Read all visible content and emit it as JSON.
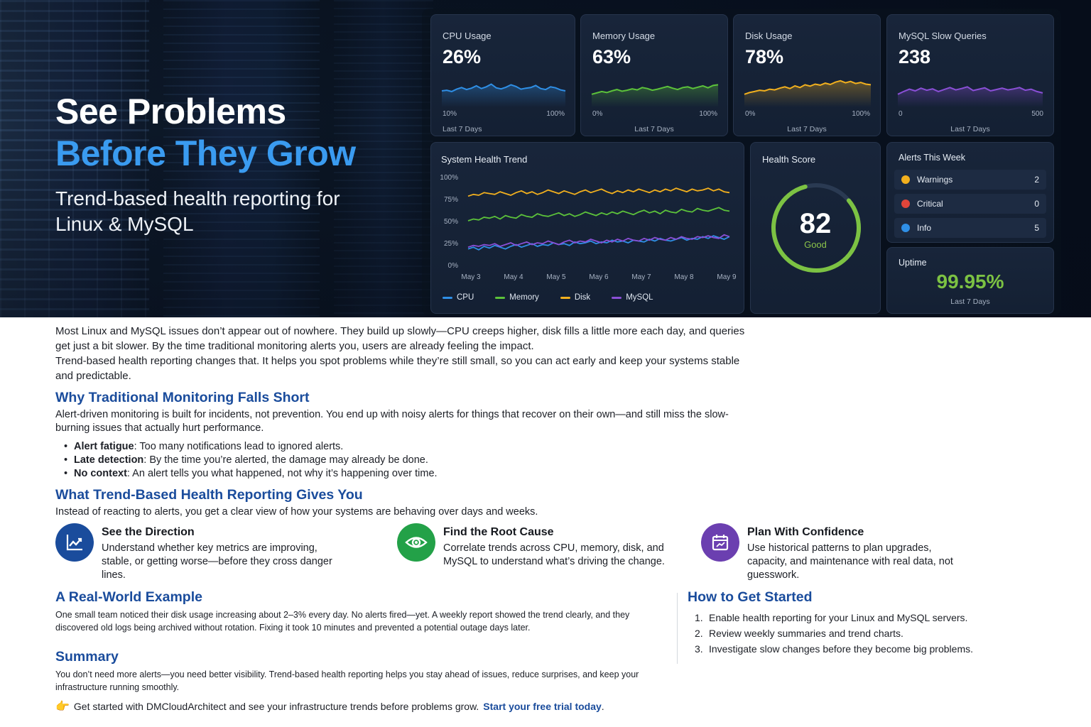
{
  "hero": {
    "title_line1": "See Problems",
    "title_line2": "Before They Grow",
    "subtitle": "Trend-based health reporting for Linux & MySQL"
  },
  "metrics": [
    {
      "label": "CPU Usage",
      "value": "26%",
      "range_min": "10%",
      "range_max": "100%",
      "period": "Last 7 Days",
      "color": "#2f8fe6",
      "series": [
        40,
        42,
        38,
        45,
        50,
        44,
        48,
        55,
        47,
        52,
        60,
        49,
        46,
        51,
        58,
        53,
        45,
        48,
        50,
        56,
        47,
        44,
        52,
        49,
        43,
        40
      ]
    },
    {
      "label": "Memory Usage",
      "value": "63%",
      "range_min": "0%",
      "range_max": "100%",
      "period": "Last 7 Days",
      "color": "#5cc23a",
      "series": [
        30,
        34,
        38,
        35,
        40,
        44,
        39,
        42,
        46,
        43,
        50,
        47,
        42,
        45,
        49,
        53,
        48,
        44,
        50,
        52,
        47,
        51,
        55,
        49,
        56,
        58
      ]
    },
    {
      "label": "Disk Usage",
      "value": "78%",
      "range_min": "0%",
      "range_max": "100%",
      "period": "Last 7 Days",
      "color": "#f2b01e",
      "series": [
        30,
        35,
        38,
        42,
        40,
        45,
        43,
        48,
        52,
        47,
        55,
        50,
        58,
        54,
        60,
        57,
        63,
        59,
        66,
        70,
        64,
        68,
        62,
        65,
        60,
        58
      ]
    },
    {
      "label": "MySQL Slow Queries",
      "value": "238",
      "range_min": "0",
      "range_max": "500",
      "period": "Last 7 Days",
      "color": "#8a4fd6",
      "series": [
        30,
        38,
        45,
        40,
        48,
        42,
        46,
        38,
        44,
        50,
        43,
        47,
        52,
        41,
        45,
        49,
        40,
        44,
        48,
        43,
        46,
        50,
        42,
        45,
        38,
        34
      ]
    }
  ],
  "trend": {
    "title": "System Health Trend",
    "y_ticks": [
      "100%",
      "75%",
      "50%",
      "25%",
      "0%"
    ],
    "x_ticks": [
      "May 3",
      "May 4",
      "May 5",
      "May 6",
      "May 7",
      "May 8",
      "May 9"
    ],
    "chart_data": {
      "type": "line",
      "ylim": [
        0,
        100
      ],
      "series": [
        {
          "name": "CPU",
          "color": "#2f8fe6",
          "values": [
            18,
            20,
            17,
            21,
            19,
            22,
            20,
            18,
            21,
            23,
            20,
            22,
            24,
            21,
            23,
            22,
            25,
            23,
            24,
            22,
            26,
            24,
            25,
            27,
            24,
            26,
            25,
            28,
            26,
            27,
            25,
            28,
            27,
            26,
            29,
            27,
            30,
            28,
            27,
            29,
            31,
            28,
            30,
            29,
            32,
            30,
            33,
            31,
            29,
            32
          ]
        },
        {
          "name": "Memory",
          "color": "#5cc23a",
          "values": [
            50,
            52,
            51,
            54,
            53,
            55,
            52,
            56,
            54,
            53,
            57,
            55,
            54,
            58,
            56,
            55,
            57,
            59,
            56,
            58,
            55,
            57,
            60,
            58,
            56,
            59,
            57,
            60,
            58,
            61,
            59,
            57,
            60,
            62,
            59,
            61,
            58,
            62,
            60,
            59,
            63,
            61,
            60,
            64,
            62,
            61,
            63,
            65,
            62,
            61
          ]
        },
        {
          "name": "Disk",
          "color": "#f2b01e",
          "values": [
            78,
            80,
            79,
            82,
            81,
            80,
            83,
            81,
            79,
            82,
            84,
            81,
            83,
            80,
            82,
            85,
            83,
            81,
            84,
            82,
            80,
            83,
            85,
            82,
            84,
            86,
            83,
            81,
            84,
            82,
            85,
            83,
            86,
            84,
            82,
            85,
            83,
            86,
            84,
            87,
            85,
            83,
            86,
            84,
            85,
            87,
            84,
            86,
            83,
            82
          ]
        },
        {
          "name": "MySQL",
          "color": "#8a4fd6",
          "values": [
            20,
            22,
            21,
            23,
            22,
            24,
            21,
            23,
            25,
            22,
            24,
            26,
            23,
            25,
            24,
            27,
            25,
            23,
            26,
            28,
            25,
            27,
            26,
            29,
            27,
            25,
            28,
            26,
            29,
            27,
            30,
            28,
            27,
            30,
            28,
            31,
            29,
            28,
            31,
            29,
            32,
            30,
            29,
            32,
            31,
            33,
            31,
            30,
            34,
            32
          ]
        }
      ]
    }
  },
  "health": {
    "title": "Health Score",
    "score": 82,
    "status": "Good",
    "color": "#7cc243"
  },
  "alerts": {
    "title": "Alerts This Week",
    "items": [
      {
        "label": "Warnings",
        "count": "2",
        "color": "#f2b01e"
      },
      {
        "label": "Critical",
        "count": "0",
        "color": "#e0453a"
      },
      {
        "label": "Info",
        "count": "5",
        "color": "#2f8fe6"
      }
    ]
  },
  "uptime": {
    "title": "Uptime",
    "value": "99.95%",
    "period": "Last 7 Days"
  },
  "article": {
    "intro_1": "Most Linux and MySQL issues don’t appear out of nowhere. They build up slowly—CPU creeps higher, disk fills a little more each day, and queries get just a bit slower. By the time traditional monitoring alerts you, users are already feeling the impact.",
    "intro_2": "Trend-based health reporting changes that. It helps you spot problems while they’re still small, so you can act early and keep your systems stable and predictable.",
    "why_title": "Why Traditional Monitoring Falls Short",
    "why_text": "Alert-driven monitoring is built for incidents, not prevention. You end up with noisy alerts for things that recover on their own—and still miss the slow-burning issues that actually hurt performance.",
    "bullets": [
      {
        "term": "Alert fatigue",
        "text": ": Too many notifications lead to ignored alerts."
      },
      {
        "term": "Late detection",
        "text": ": By the time you’re alerted, the damage may already be done."
      },
      {
        "term": "No context",
        "text": ": An alert tells you what happened, not why it’s happening over time."
      }
    ],
    "what_title": "What Trend-Based Health Reporting Gives You",
    "what_text": "Instead of reacting to alerts, you get a clear view of how your systems are behaving over days and weeks.",
    "features": [
      {
        "title": "See the Direction",
        "text": "Understand whether key metrics are improving, stable, or getting worse—before they cross danger lines.",
        "color": "#1a4c9c",
        "icon": "trend-chart-icon"
      },
      {
        "title": "Find the Root Cause",
        "text": "Correlate trends across CPU, memory, disk, and MySQL to understand what’s driving the change.",
        "color": "#23a148",
        "icon": "eye-icon"
      },
      {
        "title": "Plan With Confidence",
        "text": "Use historical patterns to plan upgrades, capacity, and maintenance with real data, not guesswork.",
        "color": "#6b3fb0",
        "icon": "calendar-icon"
      }
    ],
    "example_title": "A Real-World Example",
    "example_text": "One small team noticed their disk usage increasing about 2–3% every day. No alerts fired—yet. A weekly report showed the trend clearly, and they discovered old logs being archived without rotation. Fixing it took 10 minutes and prevented a potential outage days later.",
    "summary_title": "Summary",
    "summary_text": "You don’t need more alerts—you need better visibility. Trend-based health reporting helps you stay ahead of issues, reduce surprises, and keep your infrastructure running smoothly.",
    "start_title": "How to Get Started",
    "steps": [
      {
        "n": "1.",
        "text": "Enable health reporting for your Linux and MySQL servers."
      },
      {
        "n": "2.",
        "text": "Review weekly summaries and trend charts."
      },
      {
        "n": "3.",
        "text": "Investigate slow changes before they become big problems."
      }
    ],
    "cta_text": "Get started with DMCloudArchitect and see your infrastructure trends before problems grow.",
    "cta_link": "Start your free trial today",
    "cta_end": "."
  }
}
